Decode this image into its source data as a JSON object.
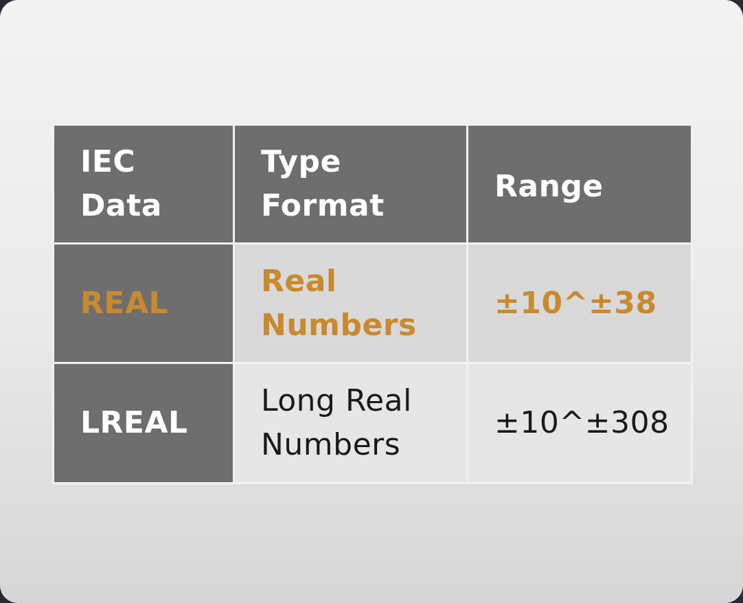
{
  "table": {
    "headers": [
      "IEC\nData",
      "Type\nFormat",
      "Range"
    ],
    "rows": [
      [
        "REAL",
        "Real\nNumbers",
        "±10^±38"
      ],
      [
        "LREAL",
        "Long Real\nNumbers",
        "±10^±308"
      ]
    ]
  },
  "colors": {
    "header_bg": "#6e6e6e",
    "highlight_text": "#c88a2e",
    "cell_bg": "#d9d9d9"
  }
}
